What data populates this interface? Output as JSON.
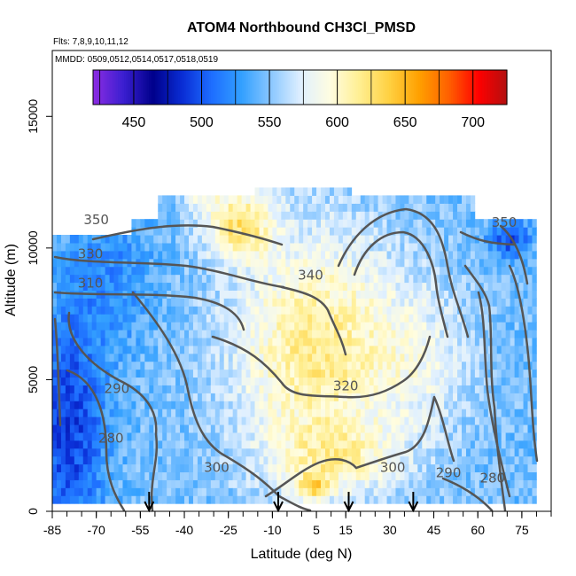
{
  "chart_data": {
    "type": "heatmap",
    "title": "ATOM4 Northbound CH3Cl_PMSD",
    "flights_label": "Flts: 7,8,9,10,11,12",
    "dates_label": "MMDD: 0509,0512,0514,0517,0518,0519",
    "xlabel": "Latitude (deg N)",
    "ylabel": "Altitude (m)",
    "xlim": [
      -85,
      85
    ],
    "ylim": [
      0,
      17500
    ],
    "xticks": [
      -85,
      -70,
      -55,
      -40,
      -25,
      -10,
      5,
      15,
      30,
      45,
      60,
      75
    ],
    "yticks": [
      0,
      5000,
      10000,
      15000
    ],
    "colorbar": {
      "range": [
        420,
        725
      ],
      "ticks": [
        450,
        500,
        550,
        600,
        650,
        700
      ],
      "colors": [
        "#8a2be2",
        "#3a1fd0",
        "#00008b",
        "#0a2ed6",
        "#1e6fff",
        "#33a0ff",
        "#8cc8ff",
        "#e0f0ff",
        "#fffde0",
        "#ffee90",
        "#ffd040",
        "#ffa000",
        "#ff6000",
        "#ff0000",
        "#b01010"
      ]
    },
    "contour_levels": [
      280,
      290,
      300,
      310,
      320,
      330,
      340,
      350
    ],
    "contour_labels": [
      {
        "text": "350",
        "lat": -70,
        "alt": 10900
      },
      {
        "text": "330",
        "lat": -72,
        "alt": 9600
      },
      {
        "text": "310",
        "lat": -72,
        "alt": 8500
      },
      {
        "text": "340",
        "lat": 3,
        "alt": 8800
      },
      {
        "text": "290",
        "lat": -63,
        "alt": 4500
      },
      {
        "text": "280",
        "lat": -65,
        "alt": 2600
      },
      {
        "text": "320",
        "lat": 15,
        "alt": 4600
      },
      {
        "text": "300",
        "lat": -29,
        "alt": 1500
      },
      {
        "text": "300",
        "lat": 31,
        "alt": 1500
      },
      {
        "text": "290",
        "lat": 50,
        "alt": 1300
      },
      {
        "text": "280",
        "lat": 65,
        "alt": 1100
      },
      {
        "text": "350",
        "lat": 69,
        "alt": 10800
      }
    ],
    "profile_latitudes": [
      -52,
      -8,
      16,
      38
    ],
    "grid": false
  }
}
